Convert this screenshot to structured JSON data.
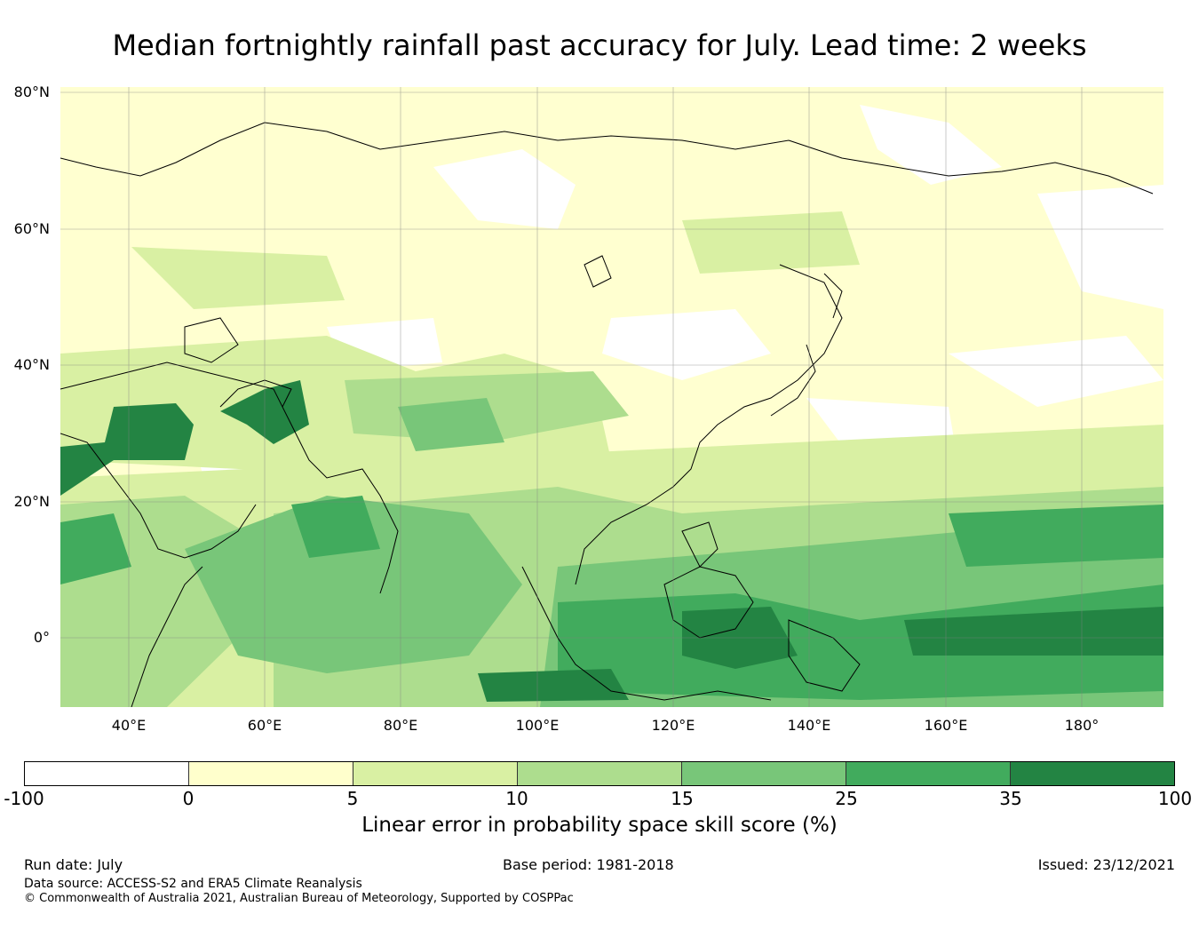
{
  "title": "Median fortnightly rainfall past accuracy for July. Lead time: 2 weeks",
  "map": {
    "lat_labels": [
      "80°N",
      "60°N",
      "40°N",
      "20°N",
      "0°"
    ],
    "lon_labels": [
      "40°E",
      "60°E",
      "80°E",
      "100°E",
      "120°E",
      "140°E",
      "160°E",
      "180°"
    ],
    "extent": {
      "lon": [
        30,
        192
      ],
      "lat": [
        -10,
        81
      ]
    }
  },
  "colorbar": {
    "label": "Linear error in probability space skill score (%)",
    "ticks": [
      "-100",
      "0",
      "5",
      "10",
      "15",
      "25",
      "35",
      "100"
    ],
    "colors": [
      "#ffffff",
      "#ffffcc",
      "#d9f0a3",
      "#addd8e",
      "#78c679",
      "#41ab5d",
      "#238443"
    ]
  },
  "footer": {
    "run_date": "Run date: July",
    "base_period": "Base period: 1981-2018",
    "issued": "Issued: 23/12/2021",
    "data_source": "Data source: ACCESS-S2 and ERA5 Climate Reanalysis",
    "copyright": "© Commonwealth of Australia 2021, Australian Bureau of Meteorology, Supported by COSPPac"
  }
}
